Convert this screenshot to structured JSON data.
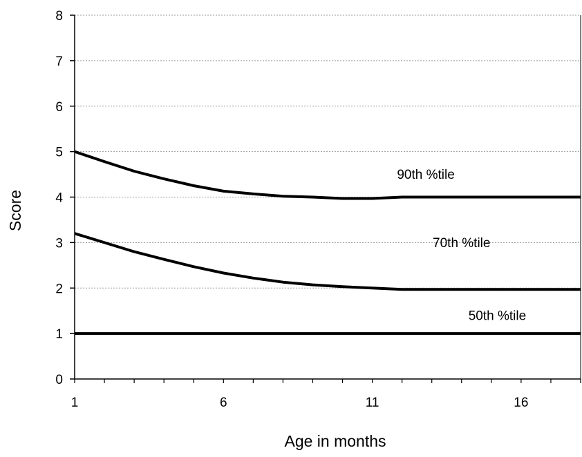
{
  "chart_data": {
    "type": "line",
    "title": "",
    "xlabel": "Age in months",
    "ylabel": "Score",
    "xlim": [
      1,
      18
    ],
    "ylim": [
      0,
      8
    ],
    "x_ticks": [
      1,
      6,
      11,
      16
    ],
    "x_tick_labels": [
      "1",
      "6",
      "11",
      "16"
    ],
    "x_minor_ticks": [
      1,
      2,
      3,
      4,
      5,
      6,
      7,
      8,
      9,
      10,
      11,
      12,
      13,
      14,
      15,
      16,
      17,
      18
    ],
    "y_ticks": [
      0,
      1,
      2,
      3,
      4,
      5,
      6,
      7,
      8
    ],
    "y_tick_labels": [
      "0",
      "1",
      "2",
      "3",
      "4",
      "5",
      "6",
      "7",
      "8"
    ],
    "grid": true,
    "series": [
      {
        "name": "90th %tile",
        "color": "#000000",
        "points": [
          [
            1,
            5.0
          ],
          [
            2,
            4.78
          ],
          [
            3,
            4.57
          ],
          [
            4,
            4.4
          ],
          [
            5,
            4.25
          ],
          [
            6,
            4.13
          ],
          [
            7,
            4.07
          ],
          [
            8,
            4.02
          ],
          [
            9,
            4.0
          ],
          [
            10,
            3.97
          ],
          [
            11,
            3.97
          ],
          [
            12,
            4.0
          ],
          [
            14,
            4.0
          ],
          [
            16,
            4.0
          ],
          [
            18,
            4.0
          ]
        ]
      },
      {
        "name": "70th %tile",
        "color": "#000000",
        "points": [
          [
            1,
            3.2
          ],
          [
            2,
            3.0
          ],
          [
            3,
            2.8
          ],
          [
            4,
            2.63
          ],
          [
            5,
            2.47
          ],
          [
            6,
            2.33
          ],
          [
            7,
            2.22
          ],
          [
            8,
            2.13
          ],
          [
            9,
            2.07
          ],
          [
            10,
            2.03
          ],
          [
            11,
            2.0
          ],
          [
            12,
            1.97
          ],
          [
            14,
            1.97
          ],
          [
            16,
            1.97
          ],
          [
            18,
            1.97
          ]
        ]
      },
      {
        "name": "50th %tile",
        "color": "#000000",
        "points": [
          [
            1,
            1.0
          ],
          [
            18,
            1.0
          ]
        ]
      }
    ],
    "annotations": [
      {
        "text": "90th %tile",
        "x": 12.8,
        "y": 4.4
      },
      {
        "text": "70th %tile",
        "x": 14.0,
        "y": 2.9
      },
      {
        "text": "50th %tile",
        "x": 15.2,
        "y": 1.3
      }
    ]
  },
  "colors": {
    "axis": "#000000",
    "grid": "#9a9a9a",
    "background": "#ffffff"
  }
}
